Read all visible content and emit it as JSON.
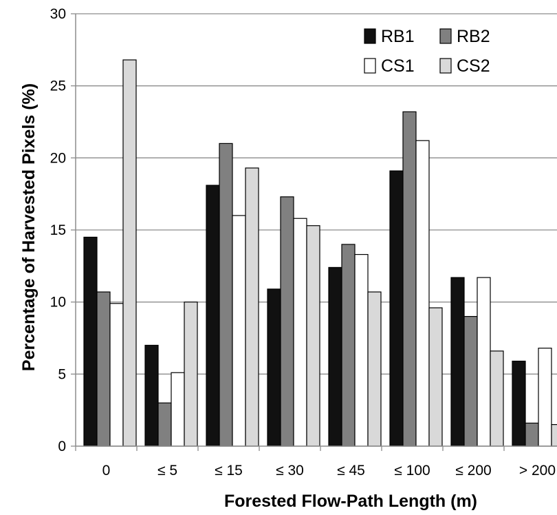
{
  "chart_data": {
    "type": "bar",
    "title": "",
    "xlabel": "Forested Flow-Path Length (m)",
    "ylabel": "Percentage of Harvested Pixels (%)",
    "ylim": [
      0,
      30
    ],
    "yticks": [
      0,
      5,
      10,
      15,
      20,
      25,
      30
    ],
    "grid": true,
    "legend_position": "top-right",
    "categories": [
      "0",
      "≤ 5",
      "≤ 15",
      "≤ 30",
      "≤ 45",
      "≤ 100",
      "≤ 200",
      "> 200"
    ],
    "series": [
      {
        "name": "RB1",
        "color": "#111111",
        "values": [
          14.5,
          7.0,
          18.1,
          10.9,
          12.4,
          19.1,
          11.7,
          5.9
        ]
      },
      {
        "name": "RB2",
        "color": "#808080",
        "values": [
          10.7,
          3.0,
          21.0,
          17.3,
          14.0,
          23.2,
          9.0,
          1.6
        ]
      },
      {
        "name": "CS1",
        "color": "#ffffff",
        "values": [
          9.9,
          5.1,
          16.0,
          15.8,
          13.3,
          21.2,
          11.7,
          6.8
        ]
      },
      {
        "name": "CS2",
        "color": "#d9d9d9",
        "values": [
          26.8,
          10.0,
          19.3,
          15.3,
          10.7,
          9.6,
          6.6,
          1.5
        ]
      }
    ]
  }
}
